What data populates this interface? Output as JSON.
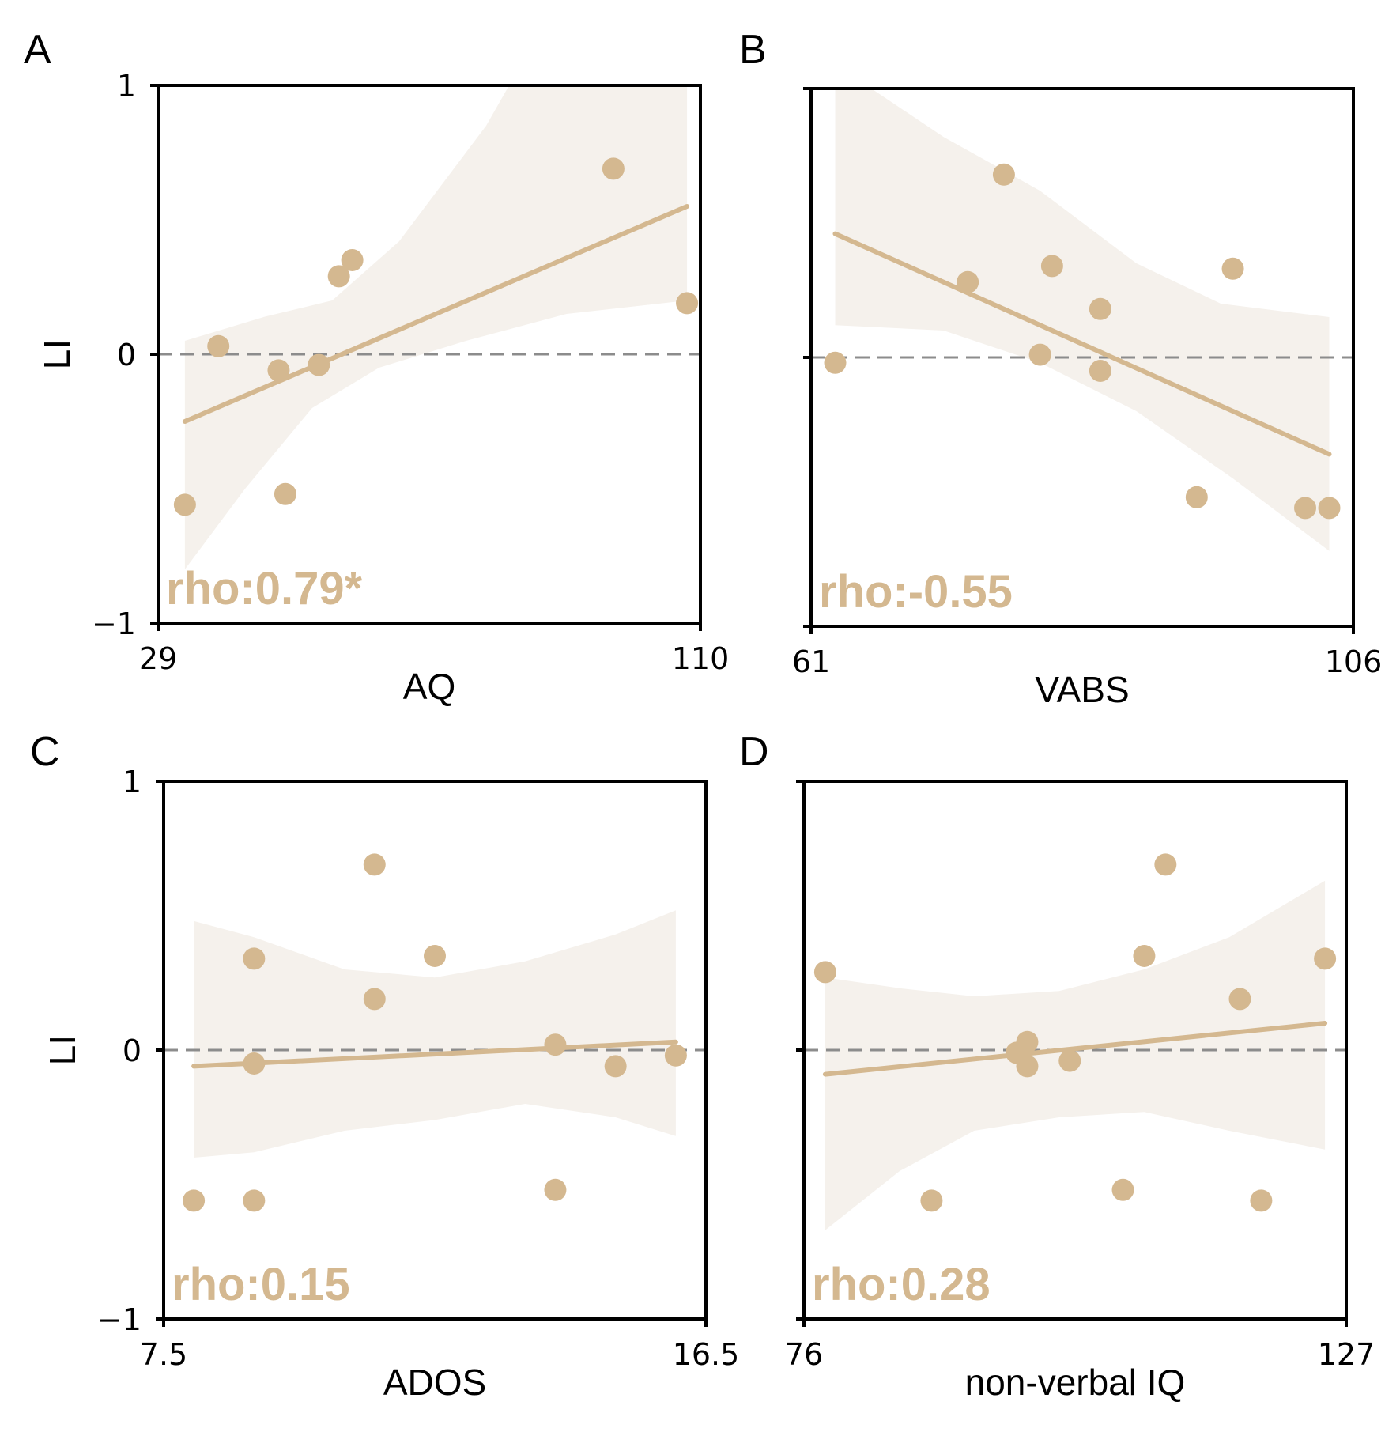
{
  "colors": {
    "accent": "#d4b890",
    "band": "#f5f1ec",
    "zero_line": "#8c8c8c",
    "axis": "#000000"
  },
  "chart_data": [
    {
      "panel": "A",
      "type": "scatter",
      "xlabel": "AQ",
      "ylabel": "LI",
      "xlim": [
        29,
        110
      ],
      "ylim": [
        -1,
        1
      ],
      "x_ticks": [
        "29",
        "110"
      ],
      "y_ticks": [
        "1",
        "0",
        "−1"
      ],
      "annotation": "rho:0.79*",
      "points": [
        [
          33,
          -0.56
        ],
        [
          38,
          0.03
        ],
        [
          47,
          -0.06
        ],
        [
          48,
          -0.52
        ],
        [
          53,
          -0.04
        ],
        [
          56,
          0.29
        ],
        [
          58,
          0.35
        ],
        [
          97,
          0.69
        ],
        [
          108,
          0.19
        ]
      ],
      "fit": [
        [
          33,
          -0.25
        ],
        [
          108,
          0.55
        ]
      ],
      "band_upper": [
        [
          33,
          0.05
        ],
        [
          45,
          0.14
        ],
        [
          55,
          0.2
        ],
        [
          65,
          0.42
        ],
        [
          78,
          0.85
        ],
        [
          86,
          1.2
        ],
        [
          100,
          1.25
        ],
        [
          108,
          1.2
        ]
      ],
      "band_lower": [
        [
          33,
          -0.8
        ],
        [
          42,
          -0.5
        ],
        [
          52,
          -0.2
        ],
        [
          62,
          -0.05
        ],
        [
          75,
          0.05
        ],
        [
          90,
          0.15
        ],
        [
          108,
          0.2
        ]
      ],
      "zero_line": 0
    },
    {
      "panel": "B",
      "type": "scatter",
      "xlabel": "VABS",
      "ylabel": "",
      "xlim": [
        61,
        106
      ],
      "ylim": [
        -1,
        1
      ],
      "x_ticks": [
        "61",
        "106"
      ],
      "y_ticks": [],
      "annotation": "rho:-0.55",
      "points": [
        [
          63,
          -0.02
        ],
        [
          74,
          0.28
        ],
        [
          77,
          0.68
        ],
        [
          80,
          0.01
        ],
        [
          81,
          0.34
        ],
        [
          85,
          0.18
        ],
        [
          85,
          -0.05
        ],
        [
          93,
          -0.52
        ],
        [
          96,
          0.33
        ],
        [
          102,
          -0.56
        ],
        [
          104,
          -0.56
        ]
      ],
      "fit": [
        [
          63,
          0.46
        ],
        [
          104,
          -0.36
        ]
      ],
      "band_upper": [
        [
          63,
          1.05
        ],
        [
          66,
          1.0
        ],
        [
          72,
          0.82
        ],
        [
          80,
          0.62
        ],
        [
          88,
          0.35
        ],
        [
          95,
          0.2
        ],
        [
          104,
          0.15
        ]
      ],
      "band_lower": [
        [
          63,
          0.12
        ],
        [
          72,
          0.1
        ],
        [
          80,
          -0.02
        ],
        [
          88,
          -0.2
        ],
        [
          96,
          -0.45
        ],
        [
          104,
          -0.72
        ]
      ],
      "zero_line": 0
    },
    {
      "panel": "C",
      "type": "scatter",
      "xlabel": "ADOS",
      "ylabel": "LI",
      "xlim": [
        7.5,
        16.5
      ],
      "ylim": [
        -1,
        1
      ],
      "x_ticks": [
        "7.5",
        "16.5"
      ],
      "y_ticks": [
        "1",
        "0",
        "−1"
      ],
      "annotation": "rho:0.15",
      "points": [
        [
          8,
          -0.56
        ],
        [
          9,
          0.34
        ],
        [
          9,
          -0.05
        ],
        [
          9,
          -0.56
        ],
        [
          11,
          0.69
        ],
        [
          11,
          0.19
        ],
        [
          12,
          0.35
        ],
        [
          14,
          0.02
        ],
        [
          14,
          -0.52
        ],
        [
          15,
          -0.06
        ],
        [
          16,
          -0.02
        ]
      ],
      "fit": [
        [
          8,
          -0.06
        ],
        [
          16,
          0.03
        ]
      ],
      "band_upper": [
        [
          8,
          0.48
        ],
        [
          9,
          0.42
        ],
        [
          10.5,
          0.3
        ],
        [
          12,
          0.27
        ],
        [
          13.5,
          0.33
        ],
        [
          15,
          0.43
        ],
        [
          16,
          0.52
        ]
      ],
      "band_lower": [
        [
          8,
          -0.4
        ],
        [
          9,
          -0.38
        ],
        [
          10.5,
          -0.3
        ],
        [
          12,
          -0.26
        ],
        [
          13.5,
          -0.2
        ],
        [
          15,
          -0.25
        ],
        [
          16,
          -0.32
        ]
      ],
      "zero_line": 0
    },
    {
      "panel": "D",
      "type": "scatter",
      "xlabel": "non-verbal IQ",
      "ylabel": "",
      "xlim": [
        76,
        127
      ],
      "ylim": [
        -1,
        1
      ],
      "x_ticks": [
        "76",
        "127"
      ],
      "y_ticks": [],
      "annotation": "rho:0.28",
      "points": [
        [
          78,
          0.29
        ],
        [
          88,
          -0.56
        ],
        [
          96,
          -0.01
        ],
        [
          97,
          0.03
        ],
        [
          97,
          -0.06
        ],
        [
          101,
          -0.04
        ],
        [
          106,
          -0.52
        ],
        [
          108,
          0.35
        ],
        [
          110,
          0.69
        ],
        [
          117,
          0.19
        ],
        [
          119,
          -0.56
        ],
        [
          125,
          0.34
        ]
      ],
      "fit": [
        [
          78,
          -0.09
        ],
        [
          125,
          0.1
        ]
      ],
      "band_upper": [
        [
          78,
          0.27
        ],
        [
          85,
          0.23
        ],
        [
          92,
          0.2
        ],
        [
          100,
          0.22
        ],
        [
          108,
          0.3
        ],
        [
          116,
          0.42
        ],
        [
          125,
          0.63
        ]
      ],
      "band_lower": [
        [
          78,
          -0.67
        ],
        [
          85,
          -0.45
        ],
        [
          92,
          -0.3
        ],
        [
          100,
          -0.25
        ],
        [
          108,
          -0.23
        ],
        [
          116,
          -0.3
        ],
        [
          125,
          -0.37
        ]
      ],
      "zero_line": 0
    }
  ]
}
